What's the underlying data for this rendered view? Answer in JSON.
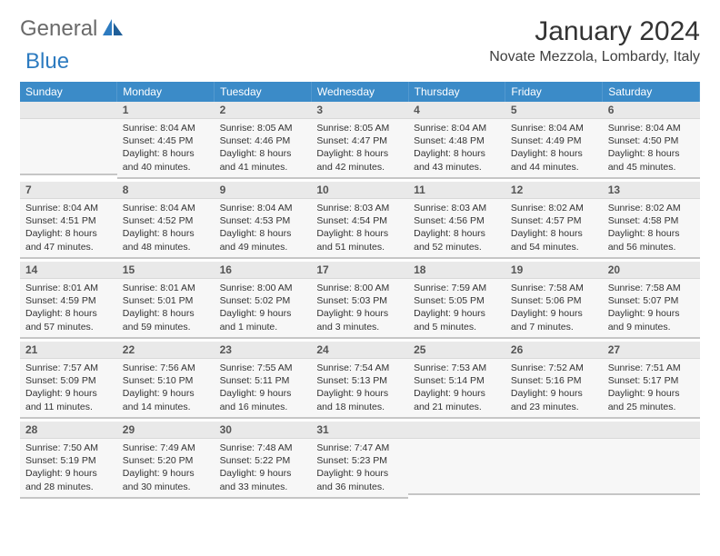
{
  "brand": {
    "word1": "General",
    "word2": "Blue"
  },
  "colors": {
    "header_bg": "#3b8bc8",
    "header_fg": "#ffffff",
    "daynum_bg": "#e9e9e9",
    "daybody_bg": "#f7f7f7",
    "row_border": "#c6c6c6",
    "brand_gray": "#6a6a6a",
    "brand_blue": "#2d7bc0"
  },
  "title": "January 2024",
  "location": "Novate Mezzola, Lombardy, Italy",
  "weekdays": [
    "Sunday",
    "Monday",
    "Tuesday",
    "Wednesday",
    "Thursday",
    "Friday",
    "Saturday"
  ],
  "start_offset": 1,
  "days": [
    {
      "n": 1,
      "sr": "8:04 AM",
      "ss": "4:45 PM",
      "dl": "8 hours and 40 minutes."
    },
    {
      "n": 2,
      "sr": "8:05 AM",
      "ss": "4:46 PM",
      "dl": "8 hours and 41 minutes."
    },
    {
      "n": 3,
      "sr": "8:05 AM",
      "ss": "4:47 PM",
      "dl": "8 hours and 42 minutes."
    },
    {
      "n": 4,
      "sr": "8:04 AM",
      "ss": "4:48 PM",
      "dl": "8 hours and 43 minutes."
    },
    {
      "n": 5,
      "sr": "8:04 AM",
      "ss": "4:49 PM",
      "dl": "8 hours and 44 minutes."
    },
    {
      "n": 6,
      "sr": "8:04 AM",
      "ss": "4:50 PM",
      "dl": "8 hours and 45 minutes."
    },
    {
      "n": 7,
      "sr": "8:04 AM",
      "ss": "4:51 PM",
      "dl": "8 hours and 47 minutes."
    },
    {
      "n": 8,
      "sr": "8:04 AM",
      "ss": "4:52 PM",
      "dl": "8 hours and 48 minutes."
    },
    {
      "n": 9,
      "sr": "8:04 AM",
      "ss": "4:53 PM",
      "dl": "8 hours and 49 minutes."
    },
    {
      "n": 10,
      "sr": "8:03 AM",
      "ss": "4:54 PM",
      "dl": "8 hours and 51 minutes."
    },
    {
      "n": 11,
      "sr": "8:03 AM",
      "ss": "4:56 PM",
      "dl": "8 hours and 52 minutes."
    },
    {
      "n": 12,
      "sr": "8:02 AM",
      "ss": "4:57 PM",
      "dl": "8 hours and 54 minutes."
    },
    {
      "n": 13,
      "sr": "8:02 AM",
      "ss": "4:58 PM",
      "dl": "8 hours and 56 minutes."
    },
    {
      "n": 14,
      "sr": "8:01 AM",
      "ss": "4:59 PM",
      "dl": "8 hours and 57 minutes."
    },
    {
      "n": 15,
      "sr": "8:01 AM",
      "ss": "5:01 PM",
      "dl": "8 hours and 59 minutes."
    },
    {
      "n": 16,
      "sr": "8:00 AM",
      "ss": "5:02 PM",
      "dl": "9 hours and 1 minute."
    },
    {
      "n": 17,
      "sr": "8:00 AM",
      "ss": "5:03 PM",
      "dl": "9 hours and 3 minutes."
    },
    {
      "n": 18,
      "sr": "7:59 AM",
      "ss": "5:05 PM",
      "dl": "9 hours and 5 minutes."
    },
    {
      "n": 19,
      "sr": "7:58 AM",
      "ss": "5:06 PM",
      "dl": "9 hours and 7 minutes."
    },
    {
      "n": 20,
      "sr": "7:58 AM",
      "ss": "5:07 PM",
      "dl": "9 hours and 9 minutes."
    },
    {
      "n": 21,
      "sr": "7:57 AM",
      "ss": "5:09 PM",
      "dl": "9 hours and 11 minutes."
    },
    {
      "n": 22,
      "sr": "7:56 AM",
      "ss": "5:10 PM",
      "dl": "9 hours and 14 minutes."
    },
    {
      "n": 23,
      "sr": "7:55 AM",
      "ss": "5:11 PM",
      "dl": "9 hours and 16 minutes."
    },
    {
      "n": 24,
      "sr": "7:54 AM",
      "ss": "5:13 PM",
      "dl": "9 hours and 18 minutes."
    },
    {
      "n": 25,
      "sr": "7:53 AM",
      "ss": "5:14 PM",
      "dl": "9 hours and 21 minutes."
    },
    {
      "n": 26,
      "sr": "7:52 AM",
      "ss": "5:16 PM",
      "dl": "9 hours and 23 minutes."
    },
    {
      "n": 27,
      "sr": "7:51 AM",
      "ss": "5:17 PM",
      "dl": "9 hours and 25 minutes."
    },
    {
      "n": 28,
      "sr": "7:50 AM",
      "ss": "5:19 PM",
      "dl": "9 hours and 28 minutes."
    },
    {
      "n": 29,
      "sr": "7:49 AM",
      "ss": "5:20 PM",
      "dl": "9 hours and 30 minutes."
    },
    {
      "n": 30,
      "sr": "7:48 AM",
      "ss": "5:22 PM",
      "dl": "9 hours and 33 minutes."
    },
    {
      "n": 31,
      "sr": "7:47 AM",
      "ss": "5:23 PM",
      "dl": "9 hours and 36 minutes."
    }
  ],
  "labels": {
    "sunrise": "Sunrise:",
    "sunset": "Sunset:",
    "daylight": "Daylight:"
  }
}
